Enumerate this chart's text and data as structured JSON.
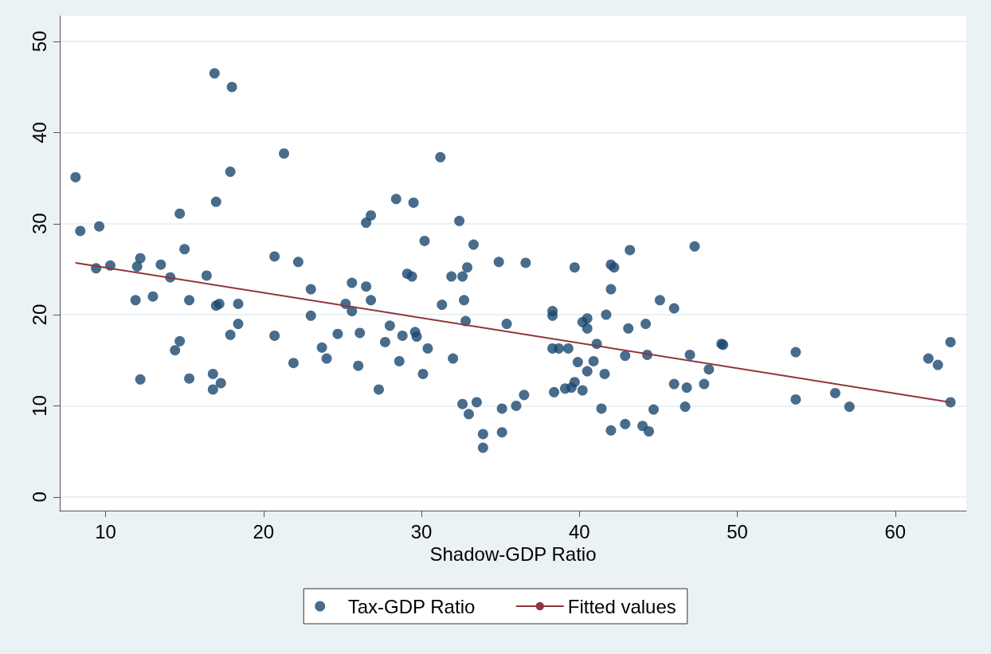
{
  "chart_data": {
    "type": "scatter",
    "xlabel": "Shadow-GDP Ratio",
    "xlim": [
      7.1,
      64.5
    ],
    "xticks": [
      10,
      20,
      30,
      40,
      50,
      60
    ],
    "ylim": [
      -1.5,
      52.8
    ],
    "yticks": [
      0,
      10,
      20,
      30,
      40,
      50
    ],
    "grid": "y",
    "legend": "bottom",
    "series": [
      {
        "name": "Tax-GDP Ratio",
        "color": "#1a476f",
        "marker": "circle",
        "x": [
          8.1,
          8.4,
          9.6,
          9.4,
          10.3,
          11.9,
          12.0,
          12.2,
          12.2,
          13.0,
          13.5,
          14.1,
          14.4,
          14.7,
          14.7,
          15.0,
          15.3,
          15.3,
          16.4,
          17.0,
          16.9,
          16.8,
          16.8,
          17.0,
          17.2,
          17.3,
          17.9,
          17.9,
          18.0,
          18.4,
          18.4,
          20.7,
          20.7,
          21.3,
          21.9,
          22.2,
          23.0,
          23.0,
          23.7,
          24.0,
          24.7,
          25.2,
          25.6,
          25.6,
          26.1,
          26.0,
          26.5,
          26.5,
          26.8,
          26.8,
          27.3,
          27.7,
          28.0,
          28.4,
          28.6,
          28.8,
          29.1,
          29.4,
          29.5,
          29.6,
          29.7,
          30.1,
          30.2,
          30.4,
          31.3,
          31.2,
          31.9,
          32.0,
          32.4,
          32.6,
          32.6,
          32.7,
          32.8,
          32.9,
          33.0,
          33.3,
          33.5,
          33.9,
          33.9,
          34.9,
          35.1,
          35.1,
          35.4,
          36.0,
          36.5,
          36.6,
          38.3,
          38.3,
          38.3,
          38.4,
          38.7,
          39.1,
          39.3,
          39.5,
          39.7,
          39.7,
          39.9,
          40.2,
          40.2,
          40.5,
          40.5,
          40.5,
          40.9,
          41.1,
          41.4,
          41.6,
          41.7,
          42.0,
          42.0,
          42.2,
          42.0,
          42.9,
          43.1,
          43.2,
          42.9,
          44.0,
          44.2,
          44.4,
          44.3,
          45.1,
          44.7,
          46.0,
          46.0,
          46.7,
          46.8,
          47.0,
          47.3,
          47.9,
          48.2,
          49.0,
          49.1,
          53.7,
          53.7,
          56.2,
          57.1,
          62.1,
          62.7,
          63.5,
          63.5
        ],
        "values": [
          35.1,
          29.2,
          29.7,
          25.1,
          25.4,
          21.6,
          25.3,
          26.2,
          12.9,
          22.0,
          25.5,
          24.1,
          16.1,
          17.1,
          31.1,
          27.2,
          21.6,
          13.0,
          24.3,
          32.4,
          46.5,
          13.5,
          11.8,
          21.0,
          21.2,
          12.5,
          17.8,
          35.7,
          45.0,
          21.2,
          19.0,
          26.4,
          17.7,
          37.7,
          14.7,
          25.8,
          22.8,
          19.9,
          16.4,
          15.2,
          17.9,
          21.2,
          23.5,
          20.4,
          18.0,
          14.4,
          23.1,
          30.1,
          30.9,
          21.6,
          11.8,
          17.0,
          18.8,
          32.7,
          14.9,
          17.7,
          24.5,
          24.2,
          32.3,
          18.1,
          17.6,
          13.5,
          28.1,
          16.3,
          21.1,
          37.3,
          24.2,
          15.2,
          30.3,
          10.2,
          24.2,
          21.6,
          19.3,
          25.2,
          9.1,
          27.7,
          10.4,
          6.9,
          5.4,
          25.8,
          9.7,
          7.1,
          19.0,
          10.0,
          11.2,
          25.7,
          20.4,
          19.9,
          16.3,
          11.5,
          16.3,
          11.9,
          16.3,
          12.0,
          12.6,
          25.2,
          14.8,
          11.7,
          19.2,
          19.6,
          18.5,
          13.8,
          14.9,
          16.8,
          9.7,
          13.5,
          20.0,
          22.8,
          25.5,
          25.2,
          7.3,
          8.0,
          18.5,
          27.1,
          15.5,
          7.8,
          19.0,
          7.2,
          15.6,
          21.6,
          9.6,
          20.7,
          12.4,
          9.9,
          12.0,
          15.6,
          27.5,
          12.4,
          14.0,
          16.8,
          16.7,
          15.9,
          10.7,
          11.4,
          9.9,
          15.2,
          14.5,
          17.0,
          10.4
        ]
      },
      {
        "type": "line",
        "name": "Fitted values",
        "color": "#90353b",
        "marker": "none",
        "x": [
          8.1,
          63.5
        ],
        "values": [
          25.7,
          10.4
        ]
      }
    ]
  }
}
